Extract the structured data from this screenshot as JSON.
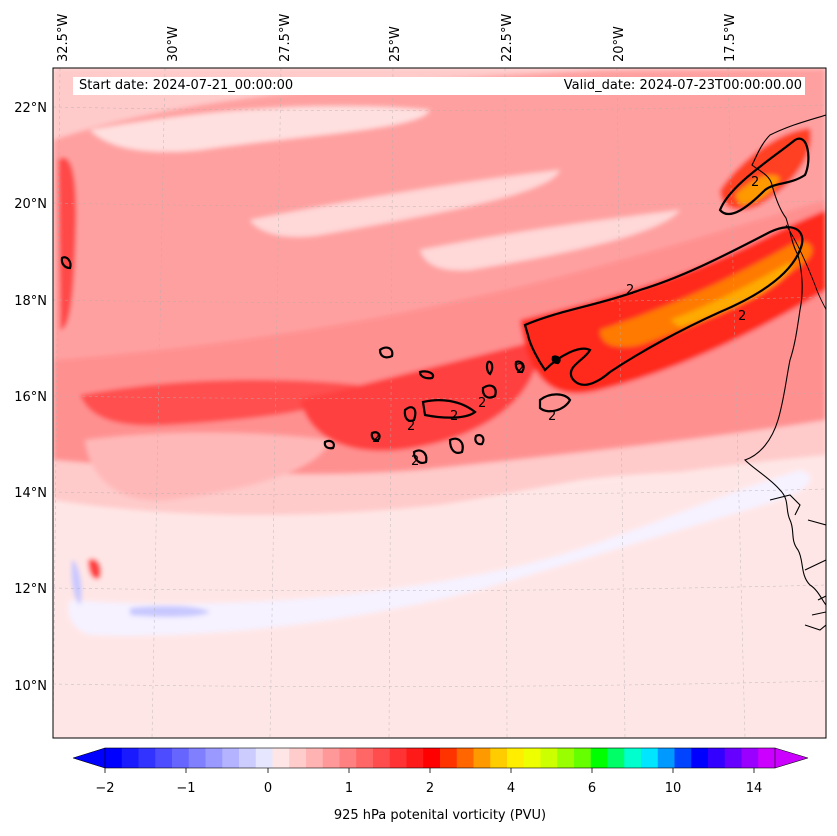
{
  "map": {
    "start_date_label": "Start date: 2024-07-21_00:00:00",
    "valid_date_label": "Valid_date: 2024-07-23T00:00:00.00",
    "lon_labels": [
      "32.5°W",
      "30°W",
      "27.5°W",
      "25°W",
      "22.5°W",
      "20°W",
      "17.5°W"
    ],
    "lat_labels": [
      "22°N",
      "20°N",
      "18°N",
      "16°N",
      "14°N",
      "12°N",
      "10°N"
    ],
    "contour_label": "2",
    "coastline_color": "#000000",
    "field_colors": {
      "background": "#fff0f0",
      "light_pink": "#ffd2d2",
      "pink": "#ffaaaa",
      "salmon": "#ff8080",
      "red_light": "#ff5a5a",
      "red": "#ff2020",
      "red_dark": "#ff3a0a",
      "orange_red": "#ff5a00",
      "orange": "#ff8c00",
      "orange_light": "#ffaa00",
      "pale_blue": "#e6e6ff",
      "light_blue": "#c8c8ff"
    }
  },
  "colorbar": {
    "title": "925 hPa potenital vorticity (PVU)",
    "tick_labels": [
      "−2",
      "−1",
      "0",
      "1",
      "2",
      "4",
      "6",
      "10",
      "14"
    ],
    "colors": [
      "#0000ff",
      "#1a1aff",
      "#3333ff",
      "#4d4dff",
      "#6666ff",
      "#8080ff",
      "#9999ff",
      "#b3b3ff",
      "#ccccff",
      "#e6e6ff",
      "#ffe6e6",
      "#ffcccc",
      "#ffb3b3",
      "#ff9999",
      "#ff8080",
      "#ff6666",
      "#ff4d4d",
      "#ff3333",
      "#ff1a1a",
      "#ff0000",
      "#ff3300",
      "#ff6600",
      "#ff9900",
      "#ffcc00",
      "#ffee00",
      "#eeff00",
      "#ccff00",
      "#99ff00",
      "#66ff00",
      "#00ff00",
      "#00ff66",
      "#00ffcc",
      "#00e6ff",
      "#0099ff",
      "#0044ff",
      "#0000ff",
      "#3300ff",
      "#6600ff",
      "#9900ff",
      "#cc00ff"
    ],
    "under_color": "#0000ff",
    "over_color": "#cc00ff"
  }
}
